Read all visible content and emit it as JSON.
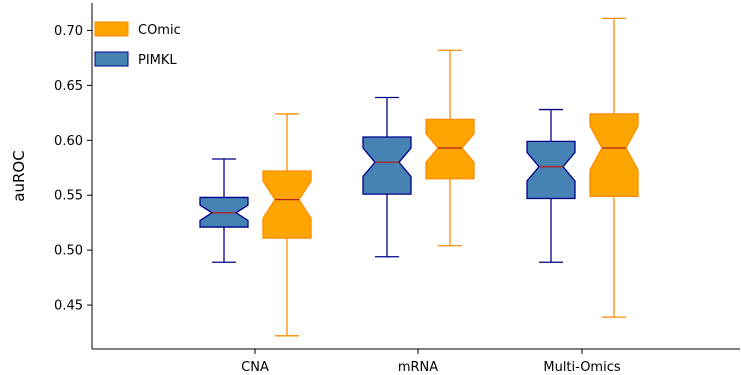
{
  "chart_data": {
    "type": "boxplot",
    "notched": true,
    "ylabel": "auROC",
    "xlabel": "",
    "title": "",
    "categories": [
      "CNA",
      "mRNA",
      "Multi-Omics"
    ],
    "ylim": [
      0.41,
      0.725
    ],
    "yticks": [
      0.45,
      0.5,
      0.55,
      0.6,
      0.65,
      0.7
    ],
    "ytick_labels": [
      "0.45",
      "0.50",
      "0.55",
      "0.60",
      "0.65",
      "0.70"
    ],
    "grid": false,
    "legend": {
      "placement": "top-left",
      "entries": [
        "COmic",
        "PIMKL"
      ]
    },
    "series": [
      {
        "name": "PIMKL",
        "color": "#4682b4",
        "edge_color": "#00008b",
        "median_color": "#b22222",
        "boxes": [
          {
            "category": "CNA",
            "whisker_low": 0.489,
            "q1": 0.521,
            "median": 0.534,
            "q3": 0.548,
            "whisker_high": 0.583,
            "notch_low": 0.527,
            "notch_high": 0.541
          },
          {
            "category": "mRNA",
            "whisker_low": 0.494,
            "q1": 0.551,
            "median": 0.58,
            "q3": 0.603,
            "whisker_high": 0.639,
            "notch_low": 0.567,
            "notch_high": 0.593
          },
          {
            "category": "Multi-Omics",
            "whisker_low": 0.489,
            "q1": 0.547,
            "median": 0.576,
            "q3": 0.599,
            "whisker_high": 0.628,
            "notch_low": 0.563,
            "notch_high": 0.589
          }
        ]
      },
      {
        "name": "COmic",
        "color": "#ffa500",
        "edge_color": "#ff8c00",
        "median_color": "#b22222",
        "boxes": [
          {
            "category": "CNA",
            "whisker_low": 0.422,
            "q1": 0.511,
            "median": 0.546,
            "q3": 0.572,
            "whisker_high": 0.624,
            "notch_low": 0.529,
            "notch_high": 0.563
          },
          {
            "category": "mRNA",
            "whisker_low": 0.504,
            "q1": 0.565,
            "median": 0.593,
            "q3": 0.619,
            "whisker_high": 0.682,
            "notch_low": 0.58,
            "notch_high": 0.606
          },
          {
            "category": "Multi-Omics",
            "whisker_low": 0.439,
            "q1": 0.549,
            "median": 0.593,
            "q3": 0.624,
            "whisker_high": 0.711,
            "notch_low": 0.573,
            "notch_high": 0.613
          }
        ]
      }
    ]
  }
}
